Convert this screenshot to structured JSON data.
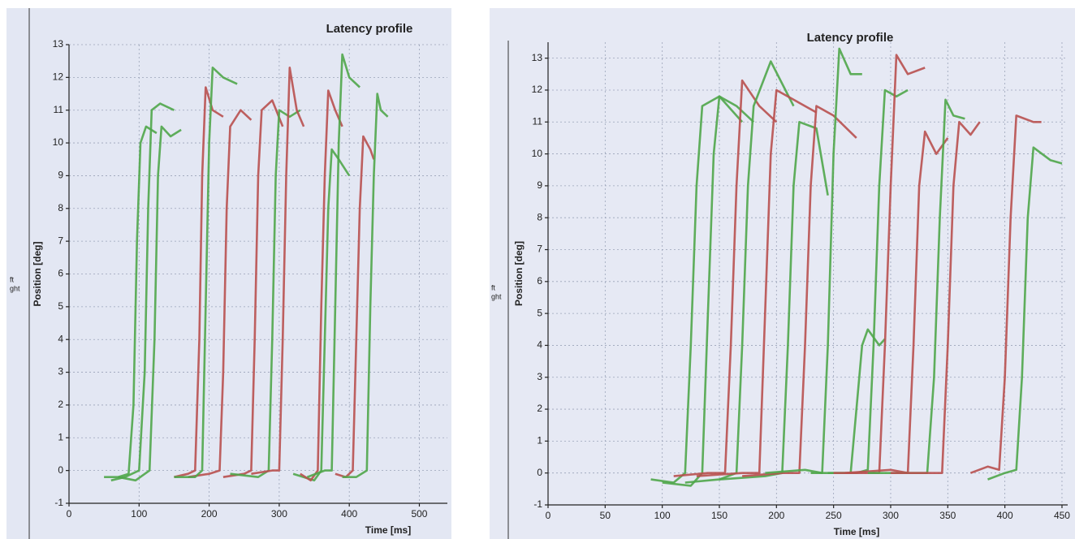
{
  "chart_data": [
    {
      "type": "line",
      "title": "Latency profile",
      "x_label": "Time [ms]",
      "y_label": "Position [deg]",
      "legend_texts": [
        "ft",
        "ght"
      ],
      "xlim": [
        0,
        540
      ],
      "xticks": [
        0,
        100,
        200,
        300,
        400,
        500
      ],
      "ylim": [
        -1,
        13
      ],
      "yticks": [
        -1,
        0,
        1,
        2,
        3,
        4,
        5,
        6,
        7,
        8,
        9,
        10,
        11,
        12,
        13
      ],
      "grid": true,
      "series": [
        {
          "color": "#4fa64a",
          "x": [
            50,
            70,
            85,
            92,
            97,
            102,
            110,
            125
          ],
          "values": [
            -0.2,
            -0.2,
            -0.1,
            2,
            7,
            10,
            10.5,
            10.3
          ]
        },
        {
          "color": "#4fa64a",
          "x": [
            60,
            80,
            100,
            108,
            113,
            118,
            130,
            150
          ],
          "values": [
            -0.3,
            -0.2,
            0,
            3,
            8,
            11,
            11.2,
            11
          ]
        },
        {
          "color": "#4fa64a",
          "x": [
            70,
            95,
            115,
            122,
            127,
            132,
            145,
            160
          ],
          "values": [
            -0.2,
            -0.3,
            0,
            4,
            9,
            10.5,
            10.2,
            10.4
          ]
        },
        {
          "color": "#b8504f",
          "x": [
            150,
            170,
            180,
            186,
            190,
            195,
            205,
            220
          ],
          "values": [
            -0.2,
            -0.1,
            0,
            4,
            9,
            11.7,
            11,
            10.8
          ]
        },
        {
          "color": "#b8504f",
          "x": [
            170,
            200,
            215,
            220,
            225,
            230,
            245,
            260
          ],
          "values": [
            -0.2,
            -0.1,
            0,
            3,
            8,
            10.5,
            11,
            10.7
          ]
        },
        {
          "color": "#4fa64a",
          "x": [
            150,
            180,
            190,
            195,
            200,
            205,
            220,
            240
          ],
          "values": [
            -0.2,
            -0.2,
            0,
            5,
            10,
            12.3,
            12,
            11.8
          ]
        },
        {
          "color": "#b8504f",
          "x": [
            220,
            250,
            260,
            265,
            270,
            275,
            290,
            305
          ],
          "values": [
            -0.2,
            -0.1,
            0,
            4,
            9,
            11,
            11.3,
            10.5
          ]
        },
        {
          "color": "#4fa64a",
          "x": [
            230,
            270,
            285,
            290,
            295,
            300,
            315,
            330
          ],
          "values": [
            -0.1,
            -0.2,
            0,
            4,
            9,
            11,
            10.8,
            11
          ]
        },
        {
          "color": "#b8504f",
          "x": [
            260,
            290,
            300,
            305,
            310,
            315,
            325,
            335
          ],
          "values": [
            -0.1,
            0,
            0,
            4,
            9,
            12.3,
            11,
            10.5
          ]
        },
        {
          "color": "#4fa64a",
          "x": [
            320,
            350,
            360,
            365,
            370,
            375,
            385,
            400
          ],
          "values": [
            -0.1,
            -0.3,
            0,
            4,
            8,
            9.8,
            9.5,
            9
          ]
        },
        {
          "color": "#b8504f",
          "x": [
            330,
            345,
            355,
            360,
            365,
            370,
            380,
            390
          ],
          "values": [
            -0.1,
            -0.3,
            0,
            5,
            9,
            11.6,
            11,
            10.5
          ]
        },
        {
          "color": "#4fa64a",
          "x": [
            340,
            365,
            375,
            380,
            385,
            390,
            400,
            415
          ],
          "values": [
            -0.2,
            0,
            0,
            5,
            10,
            12.7,
            12,
            11.7
          ]
        },
        {
          "color": "#b8504f",
          "x": [
            380,
            395,
            405,
            410,
            415,
            420,
            430,
            435
          ],
          "values": [
            -0.1,
            -0.2,
            0,
            4,
            8,
            10.2,
            9.8,
            9.5
          ]
        },
        {
          "color": "#4fa64a",
          "x": [
            390,
            410,
            425,
            430,
            435,
            440,
            445,
            455
          ],
          "values": [
            -0.2,
            -0.2,
            0,
            5,
            9,
            11.5,
            11,
            10.8
          ]
        }
      ]
    },
    {
      "type": "line",
      "title": "Latency profile",
      "x_label": "Time [ms]",
      "y_label": "Position [deg]",
      "legend_texts": [
        "ft",
        "ght"
      ],
      "xlim": [
        0,
        455
      ],
      "xticks": [
        0,
        50,
        100,
        150,
        200,
        250,
        300,
        350,
        400,
        450
      ],
      "ylim": [
        -1,
        13.5
      ],
      "yticks": [
        -1,
        0,
        1,
        2,
        3,
        4,
        5,
        6,
        7,
        8,
        9,
        10,
        11,
        12,
        13
      ],
      "grid": true,
      "series": [
        {
          "color": "#4fa64a",
          "x": [
            90,
            110,
            120,
            125,
            130,
            135,
            150,
            170
          ],
          "values": [
            -0.2,
            -0.3,
            0,
            4,
            9,
            11.5,
            11.8,
            11
          ]
        },
        {
          "color": "#4fa64a",
          "x": [
            100,
            125,
            135,
            140,
            145,
            150,
            165,
            180
          ],
          "values": [
            -0.3,
            -0.4,
            0,
            5,
            10,
            11.8,
            11.5,
            11
          ]
        },
        {
          "color": "#b8504f",
          "x": [
            110,
            140,
            155,
            160,
            165,
            170,
            185,
            200
          ],
          "values": [
            -0.1,
            0,
            0,
            4,
            9,
            12.3,
            11.5,
            11
          ]
        },
        {
          "color": "#4fa64a",
          "x": [
            120,
            150,
            165,
            170,
            175,
            180,
            195,
            215
          ],
          "values": [
            -0.3,
            -0.2,
            0,
            4,
            9,
            11.5,
            12.9,
            11.5
          ]
        },
        {
          "color": "#b8504f",
          "x": [
            130,
            170,
            185,
            190,
            195,
            200,
            215,
            235
          ],
          "values": [
            -0.1,
            0,
            0,
            5,
            10,
            12,
            11.7,
            11.3
          ]
        },
        {
          "color": "#4fa64a",
          "x": [
            150,
            190,
            205,
            210,
            215,
            220,
            235,
            245
          ],
          "values": [
            -0.2,
            -0.1,
            0,
            4,
            9,
            11,
            10.8,
            8.7
          ]
        },
        {
          "color": "#b8504f",
          "x": [
            170,
            205,
            220,
            225,
            230,
            235,
            250,
            270
          ],
          "values": [
            -0.1,
            0,
            0,
            4,
            9,
            11.5,
            11.2,
            10.5
          ]
        },
        {
          "color": "#4fa64a",
          "x": [
            190,
            225,
            240,
            245,
            250,
            255,
            265,
            275
          ],
          "values": [
            0,
            0.1,
            0,
            4,
            10,
            13.3,
            12.5,
            12.5
          ]
        },
        {
          "color": "#4fa64a",
          "x": [
            230,
            255,
            265,
            270,
            275,
            280,
            290,
            295
          ],
          "values": [
            0,
            0,
            0,
            2,
            4,
            4.5,
            4,
            4.2
          ]
        },
        {
          "color": "#4fa64a",
          "x": [
            245,
            270,
            280,
            285,
            290,
            295,
            305,
            315
          ],
          "values": [
            0,
            0,
            0.1,
            4,
            9,
            12,
            11.8,
            12
          ]
        },
        {
          "color": "#b8504f",
          "x": [
            250,
            280,
            290,
            295,
            300,
            305,
            315,
            330
          ],
          "values": [
            0,
            0,
            0,
            4,
            9,
            13.1,
            12.5,
            12.7
          ]
        },
        {
          "color": "#b8504f",
          "x": [
            260,
            300,
            315,
            320,
            325,
            330,
            340,
            350
          ],
          "values": [
            0,
            0.1,
            0,
            4,
            9,
            10.7,
            10,
            10.5
          ]
        },
        {
          "color": "#4fa64a",
          "x": [
            280,
            320,
            332,
            338,
            343,
            348,
            355,
            365
          ],
          "values": [
            0,
            0,
            0,
            3,
            8,
            11.7,
            11.2,
            11.1
          ]
        },
        {
          "color": "#b8504f",
          "x": [
            300,
            335,
            345,
            350,
            355,
            360,
            370,
            378
          ],
          "values": [
            0,
            0,
            0,
            4,
            9,
            11,
            10.6,
            11
          ]
        },
        {
          "color": "#b8504f",
          "x": [
            370,
            385,
            395,
            400,
            405,
            410,
            425,
            432
          ],
          "values": [
            0,
            0.2,
            0.1,
            3,
            8,
            11.2,
            11,
            11
          ]
        },
        {
          "color": "#4fa64a",
          "x": [
            385,
            400,
            410,
            415,
            420,
            425,
            440,
            450
          ],
          "values": [
            -0.2,
            0,
            0.1,
            3,
            8,
            10.2,
            9.8,
            9.7
          ]
        }
      ]
    }
  ]
}
